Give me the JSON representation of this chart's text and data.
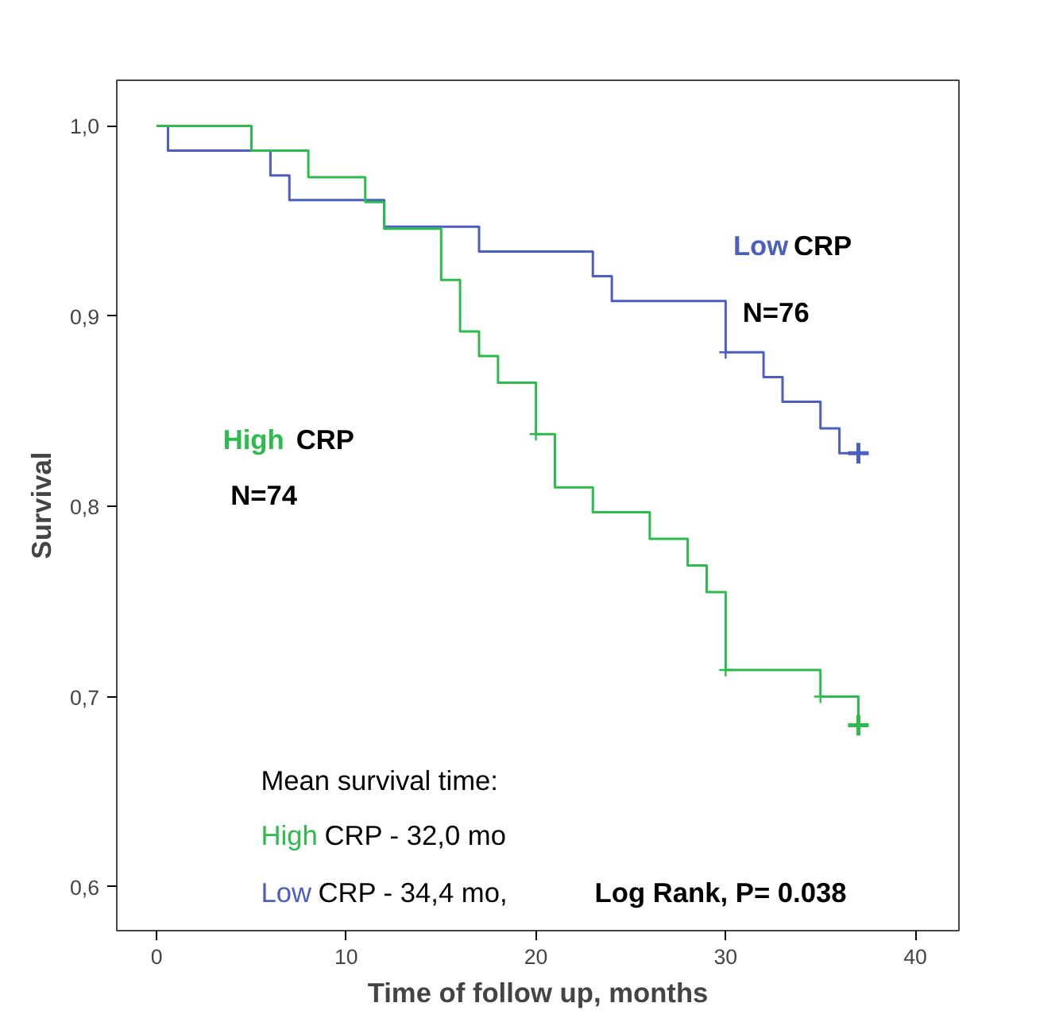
{
  "chart_data": {
    "type": "step",
    "xlabel": "Time of follow up, months",
    "ylabel": "Survival",
    "xlim": [
      -2.1,
      42.3
    ],
    "ylim": [
      0.577,
      1.024
    ],
    "xticks": [
      0,
      10,
      20,
      30,
      40
    ],
    "yticks": [
      {
        "value": 0.6,
        "label": "0,6"
      },
      {
        "value": 0.7,
        "label": "0,7"
      },
      {
        "value": 0.8,
        "label": "0,8"
      },
      {
        "value": 0.9,
        "label": "0,9"
      },
      {
        "value": 1.0,
        "label": "1,0"
      }
    ],
    "grid": false,
    "line_style": "solid",
    "series": [
      {
        "name": "Low CRP",
        "color": "#4a5fbf",
        "x": [
          0,
          0.6,
          6,
          7,
          12,
          17,
          23,
          24,
          30,
          32,
          33,
          35,
          36,
          37
        ],
        "values": [
          1,
          0.987,
          0.974,
          0.961,
          0.947,
          0.934,
          0.921,
          0.908,
          0.881,
          0.868,
          0.855,
          0.841,
          0.828,
          0.828
        ]
      },
      {
        "name": "High CRP",
        "color": "#2dbb4e",
        "x": [
          0,
          5,
          8,
          11,
          12,
          15,
          16,
          17,
          18,
          20,
          21,
          23,
          26,
          28,
          29,
          30,
          35,
          37
        ],
        "values": [
          1,
          0.987,
          0.973,
          0.96,
          0.946,
          0.919,
          0.892,
          0.879,
          0.865,
          0.838,
          0.81,
          0.797,
          0.783,
          0.769,
          0.755,
          0.714,
          0.7,
          0.685
        ]
      },
      {
        "type": "scatter",
        "marker": "cross",
        "color": "#4a5fbf",
        "x": [
          30,
          37
        ],
        "values": [
          0.881,
          0.828
        ]
      },
      {
        "type": "scatter",
        "marker": "cross",
        "color": "#2dbb4e",
        "x": [
          20,
          30,
          35,
          37
        ],
        "values": [
          0.838,
          0.714,
          0.7,
          0.685
        ]
      }
    ],
    "annotations": [
      "N=76",
      "N=74",
      "Mean survival time:",
      "High CRP - 32,0 mo",
      "Low CRP - 34,4 mo,",
      "Log Rank,  P= 0.038"
    ]
  }
}
